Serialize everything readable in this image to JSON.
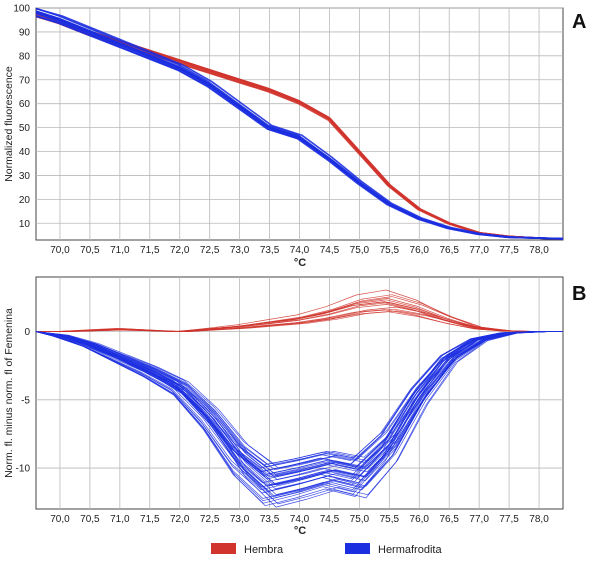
{
  "colors": {
    "hembra": "#d0342c",
    "hermafrodita": "#1c2fe0",
    "grid": "#b9b9b9"
  },
  "legend": [
    {
      "label": "Hembra",
      "color": "#d0342c"
    },
    {
      "label": "Hermafrodita",
      "color": "#1c2fe0"
    }
  ],
  "chart_data": [
    {
      "panel": "A",
      "type": "line",
      "xlabel": "°C",
      "ylabel": "Normalized fluorescence",
      "xlim": [
        69.6,
        78.4
      ],
      "ylim": [
        3,
        100
      ],
      "xticks": [
        "70,0",
        "70,5",
        "71,0",
        "71,5",
        "72,0",
        "72,5",
        "73,0",
        "73,5",
        "74,0",
        "74,5",
        "75,0",
        "75,5",
        "76,0",
        "76,5",
        "77,0",
        "77,5",
        "78,0"
      ],
      "yticks": [
        "10",
        "20",
        "30",
        "40",
        "50",
        "60",
        "70",
        "80",
        "90",
        "100"
      ],
      "grid": true,
      "series": [
        {
          "name": "Hembra",
          "x": [
            69.6,
            70.0,
            70.5,
            71.0,
            71.5,
            72.0,
            72.5,
            73.0,
            73.5,
            74.0,
            74.5,
            75.0,
            75.5,
            76.0,
            76.5,
            77.0,
            77.5,
            78.0,
            78.4
          ],
          "y": [
            98,
            95,
            90,
            86,
            82,
            78,
            74,
            70,
            66,
            61,
            54,
            40,
            26,
            16,
            10,
            6,
            4.5,
            3.8,
            3.5
          ]
        },
        {
          "name": "Hermafrodita",
          "x": [
            69.6,
            70.0,
            70.5,
            71.0,
            71.5,
            72.0,
            72.5,
            73.0,
            73.5,
            74.0,
            74.5,
            75.0,
            75.5,
            76.0,
            76.5,
            77.0,
            77.5,
            78.0,
            78.4
          ],
          "y": [
            98,
            95,
            90,
            85,
            80,
            75,
            68,
            59,
            50,
            46,
            37,
            27,
            18,
            12,
            8,
            5.5,
            4.2,
            3.8,
            3.5
          ]
        }
      ]
    },
    {
      "panel": "B",
      "type": "line",
      "xlabel": "°C",
      "ylabel": "Norm. fl. minus norm. fl of Femenina",
      "xlim": [
        69.6,
        78.4
      ],
      "ylim": [
        -13,
        4
      ],
      "xticks": [
        "70,0",
        "70,5",
        "71,0",
        "71,5",
        "72,0",
        "72,5",
        "73,0",
        "73,5",
        "74,0",
        "74,5",
        "75,0",
        "75,5",
        "76,0",
        "76,5",
        "77,0",
        "77,5",
        "78,0"
      ],
      "yticks": [
        "0",
        "-5",
        "-10"
      ],
      "grid": true,
      "series": [
        {
          "name": "Hembra",
          "x": [
            69.6,
            70.0,
            70.5,
            71.0,
            71.5,
            72.0,
            72.5,
            73.0,
            73.5,
            74.0,
            74.5,
            75.0,
            75.5,
            76.0,
            76.5,
            77.0,
            77.5,
            78.0,
            78.4
          ],
          "y": [
            0,
            0,
            0.1,
            0.2,
            0.1,
            0,
            0.2,
            0.4,
            0.7,
            1.0,
            1.5,
            2.2,
            2.5,
            1.9,
            1.0,
            0.3,
            0.05,
            0,
            0
          ]
        },
        {
          "name": "Hermafrodita",
          "x": [
            69.6,
            70.0,
            70.5,
            71.0,
            71.5,
            72.0,
            72.5,
            73.0,
            73.5,
            74.0,
            74.5,
            75.0,
            75.5,
            76.0,
            76.5,
            77.0,
            77.5,
            78.0,
            78.4
          ],
          "y": [
            0,
            -0.3,
            -1.0,
            -2.0,
            -3.0,
            -4.2,
            -6.5,
            -9.5,
            -11.4,
            -10.9,
            -10.3,
            -10.8,
            -8.5,
            -4.8,
            -2.0,
            -0.6,
            -0.1,
            0,
            0
          ]
        }
      ]
    }
  ]
}
